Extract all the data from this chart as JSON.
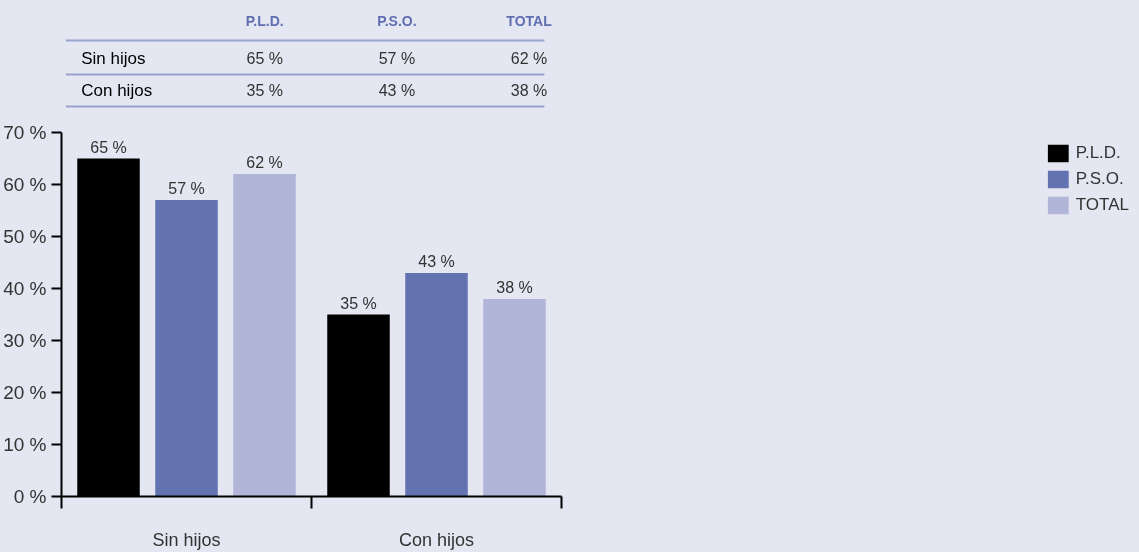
{
  "chart_data": {
    "type": "bar",
    "categories": [
      "Sin hijos",
      "Con hijos"
    ],
    "series": [
      {
        "name": "P.L.D.",
        "color": "#000000",
        "values": [
          65,
          35
        ],
        "value_labels": [
          "65 %",
          "35 %"
        ]
      },
      {
        "name": "P.S.O.",
        "color": "#6372b0",
        "values": [
          57,
          43
        ],
        "value_labels": [
          "57 %",
          "43 %"
        ]
      },
      {
        "name": "TOTAL",
        "color": "#b1b5d8",
        "values": [
          62,
          38
        ],
        "value_labels": [
          "62 %",
          "38 %"
        ]
      }
    ],
    "ylim": [
      0,
      70
    ],
    "yticks": [
      {
        "value": 0,
        "label": "0 %"
      },
      {
        "value": 10,
        "label": "10 %"
      },
      {
        "value": 20,
        "label": "20 %"
      },
      {
        "value": 30,
        "label": "30 %"
      },
      {
        "value": 40,
        "label": "40 %"
      },
      {
        "value": 50,
        "label": "50 %"
      },
      {
        "value": 60,
        "label": "60 %"
      },
      {
        "value": 70,
        "label": "70 %"
      }
    ],
    "grid": false,
    "legend": "top right"
  }
}
